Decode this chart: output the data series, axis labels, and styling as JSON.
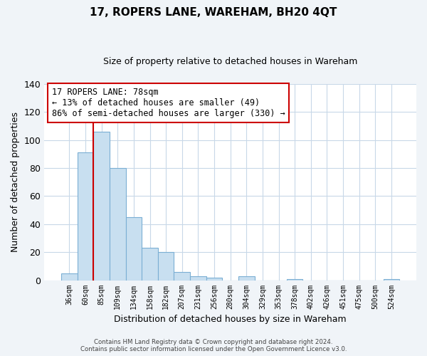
{
  "title": "17, ROPERS LANE, WAREHAM, BH20 4QT",
  "subtitle": "Size of property relative to detached houses in Wareham",
  "xlabel": "Distribution of detached houses by size in Wareham",
  "ylabel": "Number of detached properties",
  "bin_labels": [
    "36sqm",
    "60sqm",
    "85sqm",
    "109sqm",
    "134sqm",
    "158sqm",
    "182sqm",
    "207sqm",
    "231sqm",
    "256sqm",
    "280sqm",
    "304sqm",
    "329sqm",
    "353sqm",
    "378sqm",
    "402sqm",
    "426sqm",
    "451sqm",
    "475sqm",
    "500sqm",
    "524sqm"
  ],
  "bar_heights": [
    5,
    91,
    106,
    80,
    45,
    23,
    20,
    6,
    3,
    2,
    0,
    3,
    0,
    0,
    1,
    0,
    0,
    0,
    0,
    0,
    1
  ],
  "bar_color": "#c8dff0",
  "bar_edge_color": "#7bafd4",
  "vline_x_idx": 2,
  "vline_color": "#cc0000",
  "ylim": [
    0,
    140
  ],
  "yticks": [
    0,
    20,
    40,
    60,
    80,
    100,
    120,
    140
  ],
  "annotation_title": "17 ROPERS LANE: 78sqm",
  "annotation_line1": "← 13% of detached houses are smaller (49)",
  "annotation_line2": "86% of semi-detached houses are larger (330) →",
  "annotation_box_color": "#ffffff",
  "annotation_box_edge": "#cc0000",
  "footer_line1": "Contains HM Land Registry data © Crown copyright and database right 2024.",
  "footer_line2": "Contains public sector information licensed under the Open Government Licence v3.0.",
  "grid_color": "#c8d8e8",
  "background_color": "#ffffff",
  "fig_background_color": "#f0f4f8",
  "title_fontsize": 11,
  "subtitle_fontsize": 9
}
